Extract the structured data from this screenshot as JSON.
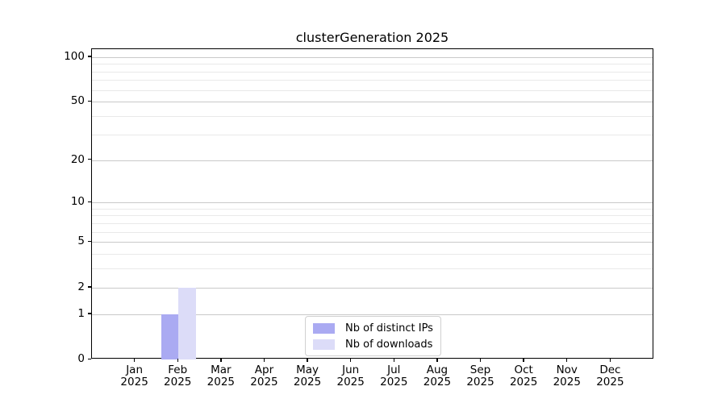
{
  "chart_data": {
    "type": "bar",
    "title": "clusterGeneration 2025",
    "categories": [
      "Jan 2025",
      "Feb 2025",
      "Mar 2025",
      "Apr 2025",
      "May 2025",
      "Jun 2025",
      "Jul 2025",
      "Aug 2025",
      "Sep 2025",
      "Oct 2025",
      "Nov 2025",
      "Dec 2025"
    ],
    "series": [
      {
        "name": "Nb of distinct IPs",
        "color": "#aaaaf2",
        "values": [
          0,
          1,
          0,
          0,
          0,
          0,
          0,
          0,
          0,
          0,
          0,
          0
        ]
      },
      {
        "name": "Nb of downloads",
        "color": "#dcdcf8",
        "values": [
          0,
          2,
          0,
          0,
          0,
          0,
          0,
          0,
          0,
          0,
          0,
          0
        ]
      }
    ],
    "yscale": "log1p",
    "ylim": [
      0,
      113
    ],
    "yticks": [
      0,
      1,
      2,
      5,
      10,
      20,
      50,
      100
    ],
    "minor_yticks": [
      3,
      4,
      6,
      7,
      8,
      9,
      30,
      40,
      60,
      70,
      80,
      90
    ],
    "grid": true,
    "grid_color_major": "#c9c9c9",
    "grid_color_minor": "#e9e9e9",
    "axis_color": "#000000",
    "legend_position": "lower center"
  }
}
